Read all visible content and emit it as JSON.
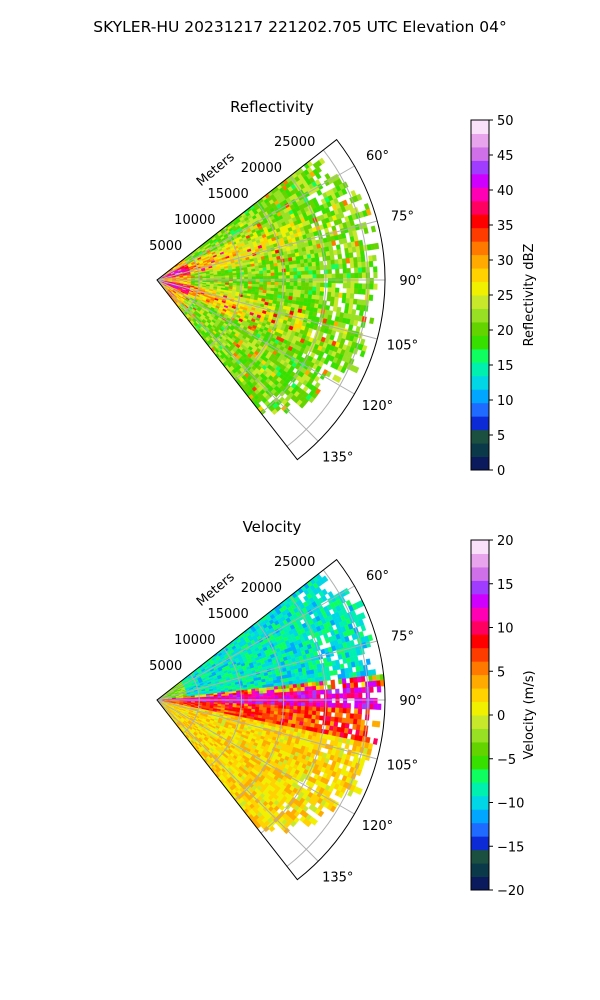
{
  "figure": {
    "title": "SKYLER-HU  20231217  221202.705 UTC Elevation 04°"
  },
  "chart_data": [
    {
      "type": "heatmap",
      "subtype": "polar-sector-ppi",
      "title": "Reflectivity",
      "radial_label": "Meters",
      "range_ticks": [
        5000,
        10000,
        15000,
        20000,
        25000
      ],
      "range_max": 27000,
      "azimuth_ticks_deg": [
        60,
        75,
        90,
        105,
        120,
        135
      ],
      "azimuth_tick_labels": [
        "60°",
        "75°",
        "90°",
        "105°",
        "120°",
        "135°"
      ],
      "azimuth_range": [
        52,
        142
      ],
      "grid": true,
      "colorbar": {
        "label": "Reflectivity dBZ",
        "vmin": 0,
        "vmax": 50,
        "ticks": [
          0,
          5,
          10,
          15,
          20,
          25,
          30,
          35,
          40,
          45,
          50
        ],
        "tick_labels": [
          "0",
          "5",
          "10",
          "15",
          "20",
          "25",
          "30",
          "35",
          "40",
          "45",
          "50"
        ],
        "colors": [
          "#0b1a5c",
          "#0a3a4a",
          "#1b4f3f",
          "#0c2bd6",
          "#1f6bff",
          "#00a6ff",
          "#00d6e6",
          "#00f0b0",
          "#10ff60",
          "#38e000",
          "#64d400",
          "#98e024",
          "#c8e82c",
          "#f0f000",
          "#ffd200",
          "#ffaa00",
          "#ff7800",
          "#ff3c00",
          "#ff0000",
          "#ff0060",
          "#ff00b4",
          "#d000ff",
          "#a03cff",
          "#d070e8",
          "#e9a4ee",
          "#fbe2fb"
        ]
      },
      "field_description": "range-azimuth reflectivity field: ~28-35 dBZ near radar along 70-80 and 100-115 deg, mostly 18-27 dBZ elsewhere"
    },
    {
      "type": "heatmap",
      "subtype": "polar-sector-ppi",
      "title": "Velocity",
      "radial_label": "Meters",
      "range_ticks": [
        5000,
        10000,
        15000,
        20000,
        25000
      ],
      "range_max": 27000,
      "azimuth_ticks_deg": [
        60,
        75,
        90,
        105,
        120,
        135
      ],
      "azimuth_tick_labels": [
        "60°",
        "75°",
        "90°",
        "105°",
        "120°",
        "135°"
      ],
      "azimuth_range": [
        52,
        142
      ],
      "grid": true,
      "colorbar": {
        "label": "Velocity (m/s)",
        "vmin": -20,
        "vmax": 20,
        "ticks": [
          -20,
          -15,
          -10,
          -5,
          0,
          5,
          10,
          15,
          20
        ],
        "tick_labels": [
          "−20",
          "−15",
          "−10",
          "−5",
          "0",
          "5",
          "10",
          "15",
          "20"
        ],
        "colors": [
          "#0b1a5c",
          "#0a3a4a",
          "#1b4f3f",
          "#0c2bd6",
          "#1f6bff",
          "#00a6ff",
          "#00d6e6",
          "#00f0b0",
          "#10ff60",
          "#38e000",
          "#64d400",
          "#98e024",
          "#c8e82c",
          "#f0f000",
          "#ffd200",
          "#ffaa00",
          "#ff7800",
          "#ff3c00",
          "#ff0000",
          "#ff0060",
          "#ff00b4",
          "#d000ff",
          "#a03cff",
          "#d070e8",
          "#e9a4ee",
          "#fbe2fb"
        ]
      },
      "field_description": "range-azimuth velocity field: about -8 to -12 m/s north of 85 deg, strong +10 to +15 m/s band near 85-92 deg, +5 to +10 m/s at 92-100 deg, 0 to +5 m/s south of 100 deg"
    }
  ]
}
